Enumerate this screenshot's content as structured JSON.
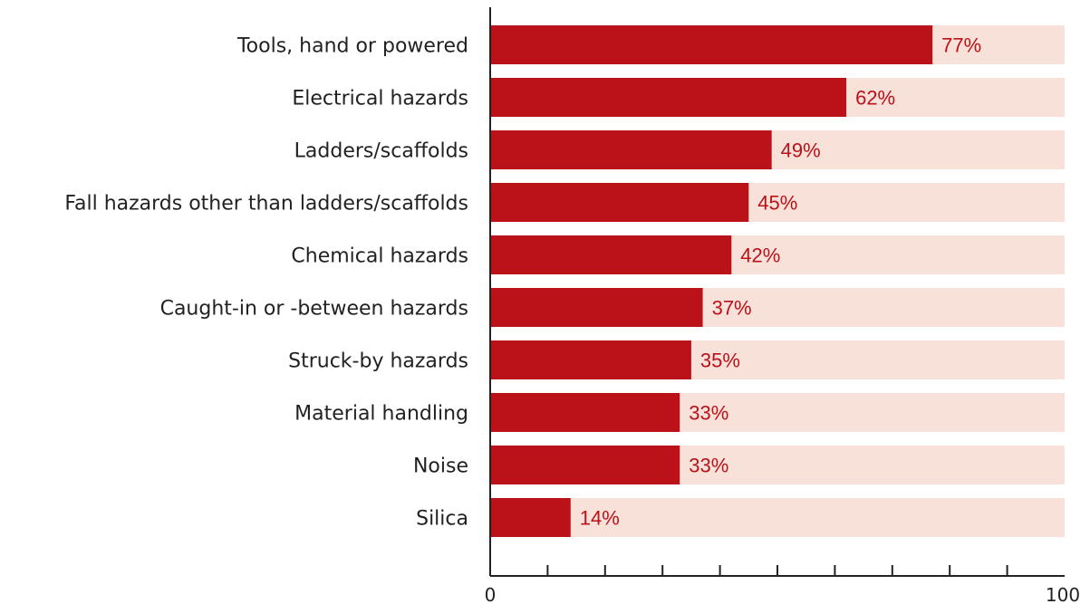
{
  "chart_data": {
    "type": "bar",
    "orientation": "horizontal",
    "categories": [
      "Tools, hand or powered",
      "Electrical hazards",
      "Ladders/scaffolds",
      "Fall hazards other than ladders/scaffolds",
      "Chemical hazards",
      "Caught-in or -between hazards",
      "Struck-by hazards",
      "Material handling",
      "Noise",
      "Silica"
    ],
    "values": [
      77,
      62,
      49,
      45,
      42,
      37,
      35,
      33,
      33,
      14
    ],
    "value_labels": [
      "77%",
      "62%",
      "49%",
      "45%",
      "42%",
      "37%",
      "35%",
      "33%",
      "33%",
      "14%"
    ],
    "xlim": [
      0,
      100
    ],
    "x_tick_labels": [
      "0",
      "100"
    ],
    "x_minor_ticks": [
      10,
      20,
      30,
      40,
      50,
      60,
      70,
      80,
      90
    ],
    "grid": false,
    "colors": {
      "bar": "#bb1119",
      "track": "#f8e1d9",
      "value_label": "#bb1119",
      "axis": "#222222"
    }
  }
}
